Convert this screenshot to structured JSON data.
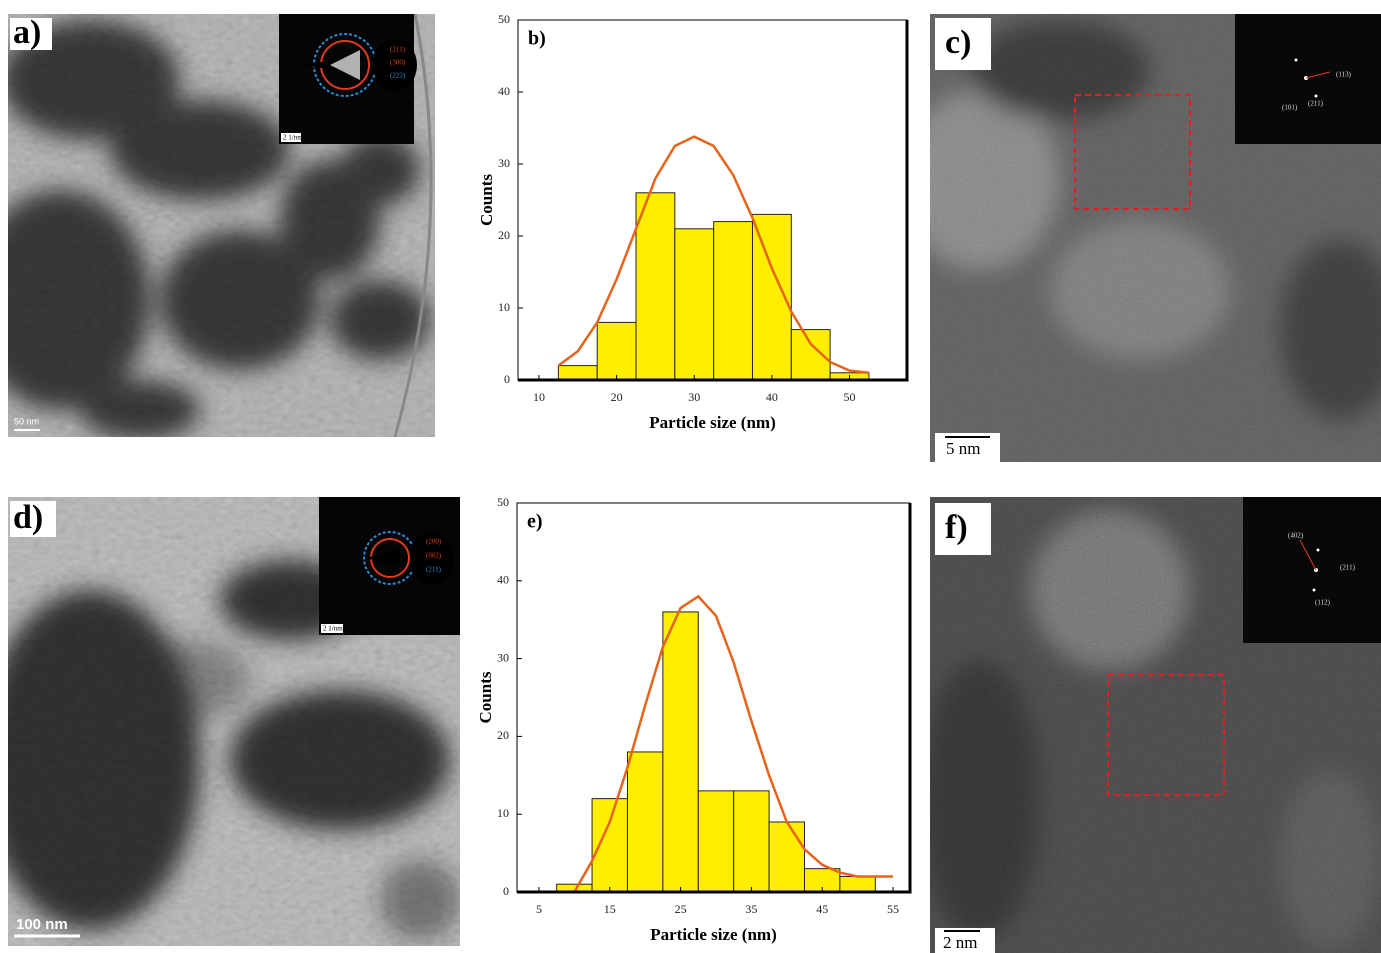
{
  "panels": [
    {
      "label": "a)",
      "scale_bar": "50 nm",
      "inset": {
        "labels": [
          "(211)",
          "(300)",
          "(222)"
        ],
        "scale_bar": "2 1/nm"
      }
    },
    {
      "label": "c)",
      "scale_bar": "5 nm",
      "inset": {
        "labels": [
          "(113)",
          "(101)",
          "(211)"
        ]
      }
    },
    {
      "label": "d)",
      "scale_bar": "100 nm",
      "inset": {
        "labels": [
          "(200)",
          "(002)",
          "(211)"
        ],
        "scale_bar": "2 1/nm"
      }
    },
    {
      "label": "f)",
      "scale_bar": "2 nm",
      "inset": {
        "labels": [
          "(402)",
          "(211)",
          "(112)"
        ]
      }
    }
  ],
  "chart_data": [
    {
      "type": "histogram",
      "title": "b)",
      "xlabel": "Particle size (nm)",
      "ylabel": "Counts",
      "bins": [
        12.5,
        17.5,
        22.5,
        27.5,
        32.5,
        37.5,
        42.5,
        47.5,
        52.5
      ],
      "values": [
        2,
        8,
        26,
        21,
        22,
        23,
        7,
        1
      ],
      "color": "#ffee00",
      "edgecolor": "#222222",
      "fit": {
        "x": [
          12.5,
          15,
          17.5,
          20,
          22.5,
          25,
          27.5,
          30,
          32.5,
          35,
          37.5,
          40,
          42.5,
          45,
          47.5,
          50,
          52.5
        ],
        "values": [
          2,
          4,
          8,
          14,
          21,
          28,
          32.5,
          33.8,
          32.5,
          28.5,
          22.5,
          15.5,
          9.5,
          5,
          2.5,
          1.3,
          1
        ],
        "color": "#e8631a"
      },
      "xlim": [
        7.3,
        57.4
      ],
      "ylim": [
        0,
        50
      ],
      "xticks": [
        10,
        20,
        30,
        40,
        50
      ],
      "yticks": [
        0,
        10,
        20,
        30,
        40,
        50
      ]
    },
    {
      "type": "histogram",
      "title": "e)",
      "xlabel": "Particle size (nm)",
      "ylabel": "Counts",
      "bins": [
        7.5,
        12.5,
        17.5,
        22.5,
        27.5,
        32.5,
        37.5,
        42.5,
        47.5,
        52.5
      ],
      "values": [
        1,
        12,
        18,
        36,
        13,
        13,
        9,
        3,
        2
      ],
      "color": "#ffee00",
      "edgecolor": "#222222",
      "fit": {
        "x": [
          10,
          12.5,
          15,
          17.5,
          20,
          22.5,
          25,
          27.5,
          30,
          32.5,
          35,
          37.5,
          40,
          42.5,
          45,
          47.5,
          50,
          52.5,
          55
        ],
        "values": [
          0,
          4,
          9,
          16,
          24,
          31.5,
          36.5,
          38,
          35.5,
          29.5,
          22,
          15,
          9,
          5.5,
          3.5,
          2.5,
          2,
          2,
          2
        ],
        "color": "#e8631a"
      },
      "xlim": [
        1.9,
        57.4
      ],
      "ylim": [
        0,
        50
      ],
      "xticks": [
        5,
        15,
        25,
        35,
        45,
        55
      ],
      "yticks": [
        0,
        10,
        20,
        30,
        40,
        50
      ]
    }
  ]
}
